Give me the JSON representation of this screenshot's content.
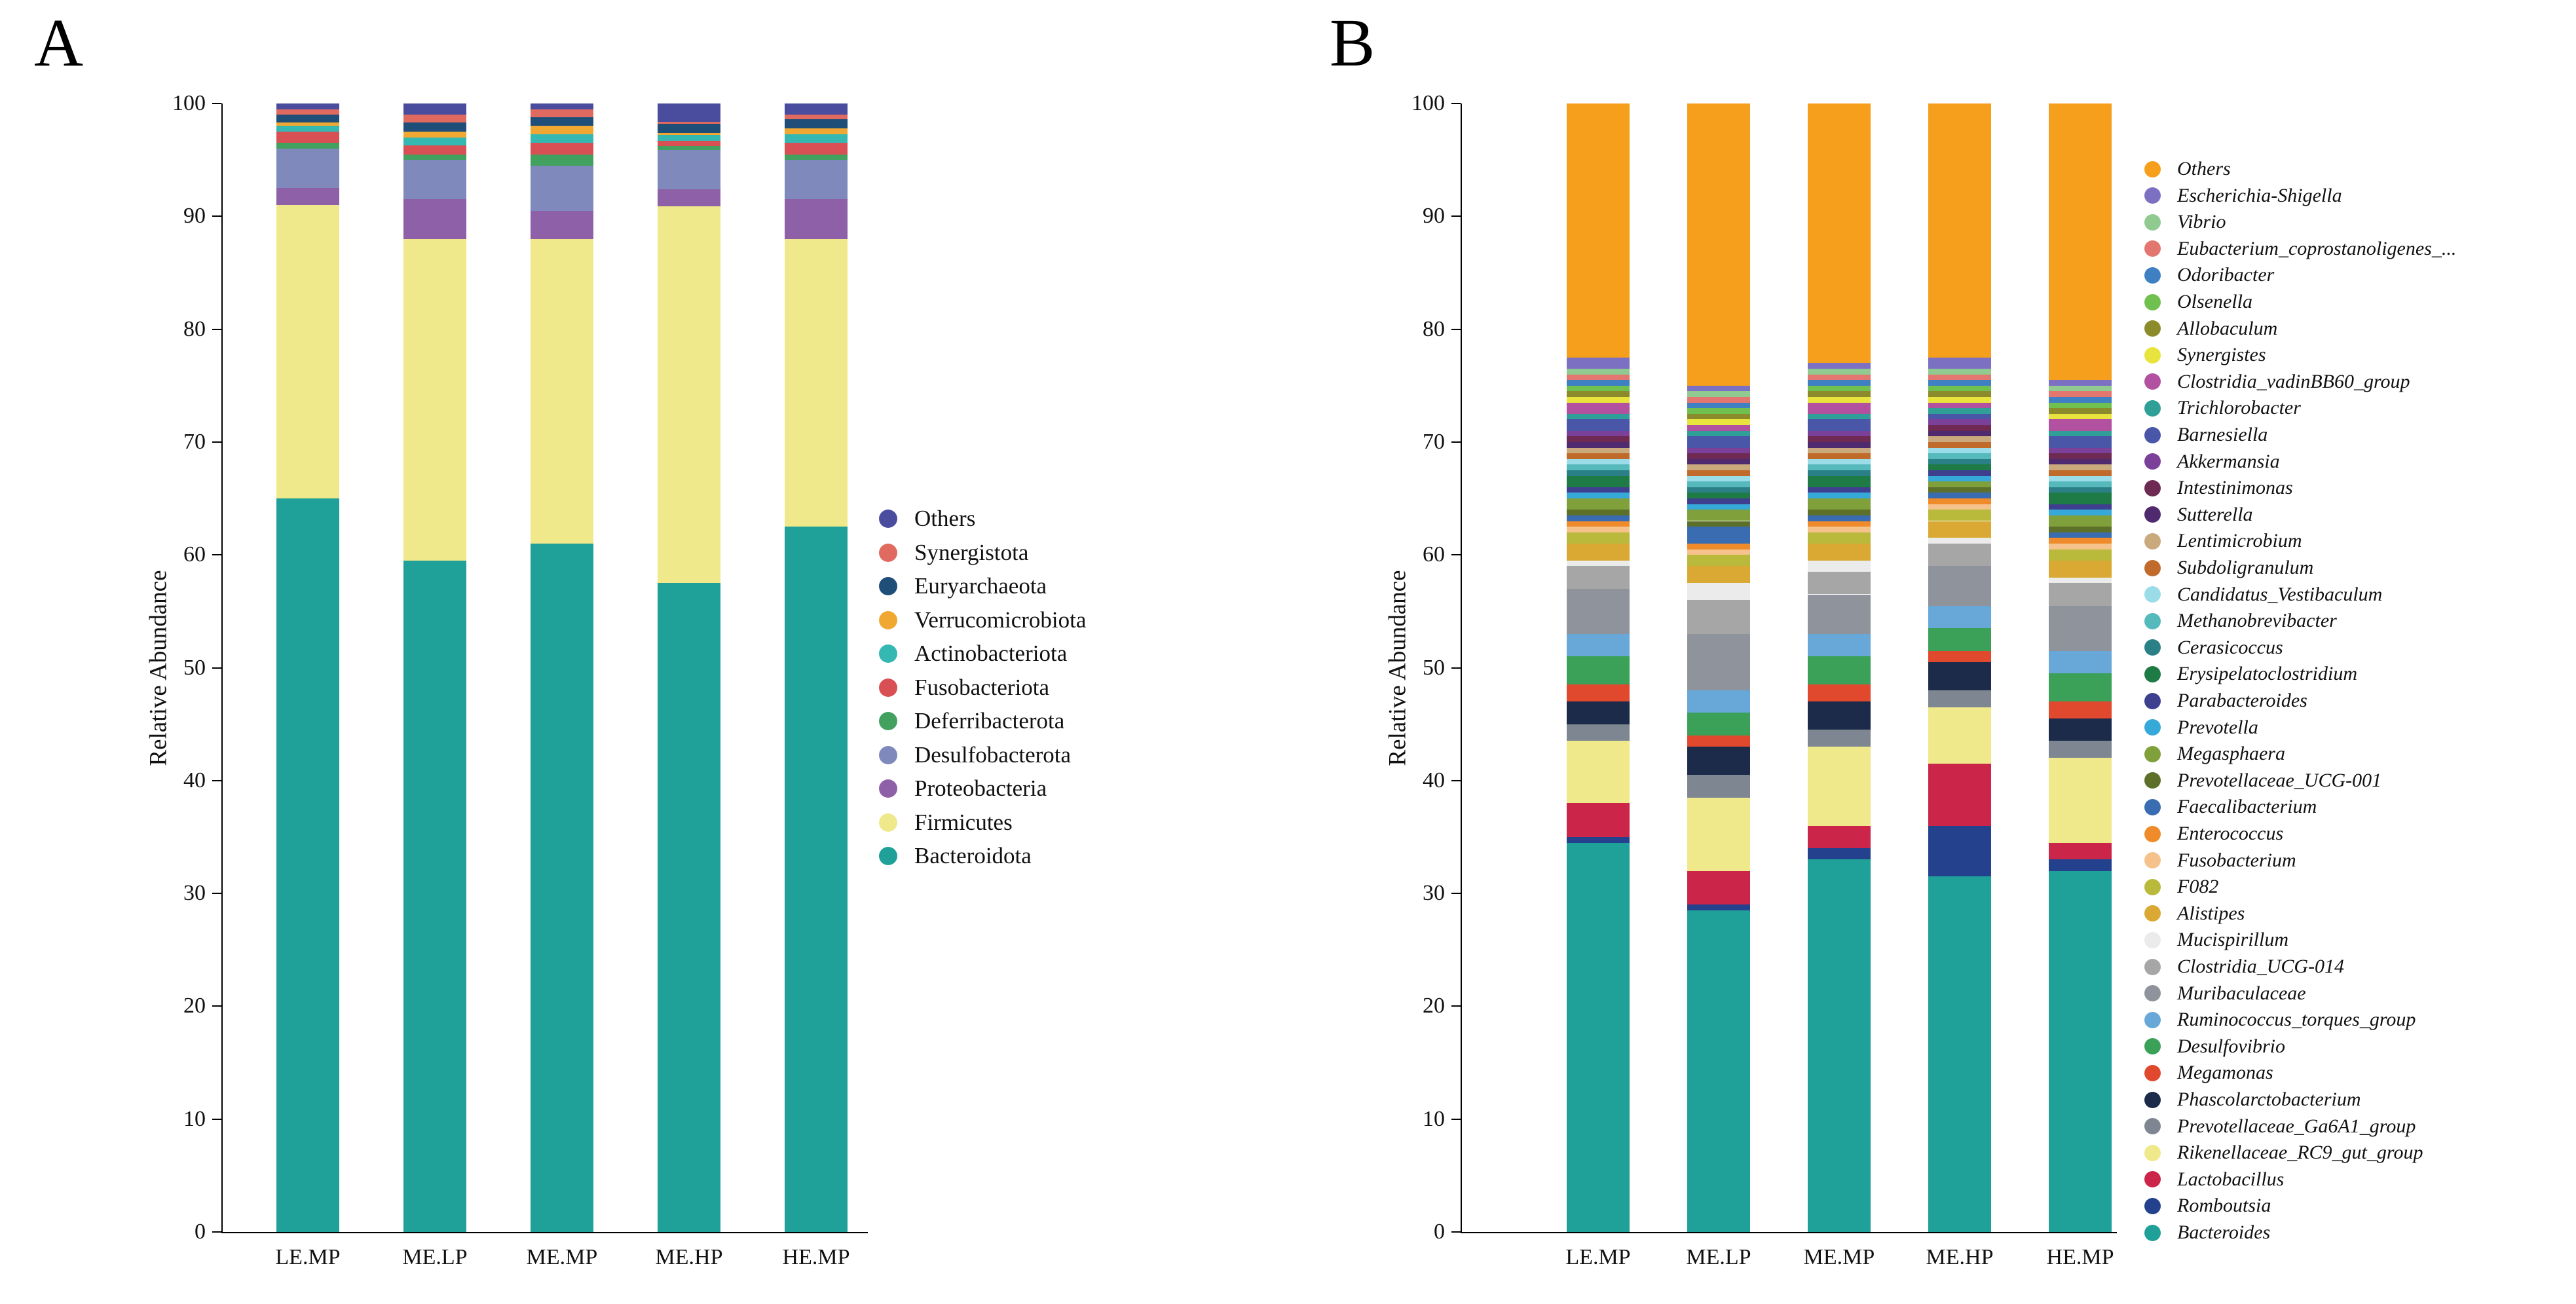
{
  "panel_a": {
    "label": "A"
  },
  "panel_b": {
    "label": "B"
  },
  "chart_data": [
    {
      "id": "A",
      "type": "bar",
      "stacked": true,
      "title": "",
      "xlabel": "",
      "ylabel": "Relative Abundance",
      "ylim": [
        0,
        100
      ],
      "ytick_step": 10,
      "grid": false,
      "legend_position": "right",
      "legend_italic": false,
      "categories": [
        "LE.MP",
        "ME.LP",
        "ME.MP",
        "ME.HP",
        "HE.MP"
      ],
      "series": [
        {
          "name": "Bacteroidota",
          "color": "#1fa098",
          "values": [
            65,
            59.5,
            61,
            57.5,
            62.5
          ]
        },
        {
          "name": "Firmicutes",
          "color": "#efe98c",
          "values": [
            26,
            28.5,
            27,
            33.4,
            25.5
          ]
        },
        {
          "name": "Proteobacteria",
          "color": "#8e60a8",
          "values": [
            1.5,
            3.5,
            2.5,
            1.5,
            3.5
          ]
        },
        {
          "name": "Desulfobacterota",
          "color": "#8089bb",
          "values": [
            3.5,
            3.5,
            4,
            3.5,
            3.5
          ]
        },
        {
          "name": "Deferribacterota",
          "color": "#43a160",
          "values": [
            0.5,
            0.5,
            1,
            0.3,
            0.5
          ]
        },
        {
          "name": "Fusobacteriota",
          "color": "#d84f54",
          "values": [
            1,
            0.8,
            1,
            0.5,
            1
          ]
        },
        {
          "name": "Actinobacteriota",
          "color": "#35b8b2",
          "values": [
            0.5,
            0.7,
            0.8,
            0.5,
            0.8
          ]
        },
        {
          "name": "Verrucomicrobiota",
          "color": "#f0a833",
          "values": [
            0.3,
            0.5,
            0.7,
            0.2,
            0.5
          ]
        },
        {
          "name": "Euryarchaeota",
          "color": "#1f4e79",
          "values": [
            0.7,
            0.8,
            0.8,
            0.8,
            0.8
          ]
        },
        {
          "name": "Synergistota",
          "color": "#e06a5f",
          "values": [
            0.5,
            0.7,
            0.7,
            0.2,
            0.4
          ]
        },
        {
          "name": "Others",
          "color": "#4a4d9e",
          "values": [
            0.5,
            1,
            0.5,
            1.6,
            1
          ]
        }
      ]
    },
    {
      "id": "B",
      "type": "bar",
      "stacked": true,
      "title": "",
      "xlabel": "",
      "ylabel": "Relative Abundance",
      "ylim": [
        0,
        100
      ],
      "ytick_step": 10,
      "grid": false,
      "legend_position": "right",
      "legend_italic": true,
      "categories": [
        "LE.MP",
        "ME.LP",
        "ME.MP",
        "ME.HP",
        "HE.MP"
      ],
      "series": [
        {
          "name": "Bacteroides",
          "color": "#1fa098",
          "values": [
            34.5,
            28.5,
            33,
            31.5,
            32
          ]
        },
        {
          "name": "Romboutsia",
          "color": "#24418e",
          "values": [
            0.5,
            0.5,
            1,
            4.5,
            1
          ]
        },
        {
          "name": "Lactobacillus",
          "color": "#cb2649",
          "values": [
            3,
            3,
            2,
            5.5,
            1.5
          ]
        },
        {
          "name": "Rikenellaceae_RC9_gut_group",
          "color": "#efe98c",
          "values": [
            5.5,
            6.5,
            7,
            5,
            7.5
          ]
        },
        {
          "name": "Prevotellaceae_Ga6A1_group",
          "color": "#7e8791",
          "values": [
            1.5,
            2,
            1.5,
            1.5,
            1.5
          ]
        },
        {
          "name": "Phascolarctobacterium",
          "color": "#1c2b4a",
          "values": [
            2,
            2.5,
            2.5,
            2.5,
            2
          ]
        },
        {
          "name": "Megamonas",
          "color": "#e0492e",
          "values": [
            1.5,
            1,
            1.5,
            1,
            1.5
          ]
        },
        {
          "name": "Desulfovibrio",
          "color": "#3ba158",
          "values": [
            2.5,
            2,
            2.5,
            2,
            2.5
          ]
        },
        {
          "name": "Ruminococcus_torques_group",
          "color": "#68a8d8",
          "values": [
            2,
            2,
            2,
            2,
            2
          ]
        },
        {
          "name": "Muribaculaceae",
          "color": "#8e939c",
          "values": [
            4,
            5,
            3.5,
            3.5,
            4
          ]
        },
        {
          "name": "Clostridia_UCG-014",
          "color": "#a6a6a6",
          "values": [
            2,
            3,
            2,
            2,
            2
          ]
        },
        {
          "name": "Mucispirillum",
          "color": "#ebebeb",
          "values": [
            0.5,
            1.5,
            1,
            0.5,
            0.5
          ]
        },
        {
          "name": "Alistipes",
          "color": "#d9a933",
          "values": [
            1.5,
            1.5,
            1.5,
            1.5,
            1.5
          ]
        },
        {
          "name": "F082",
          "color": "#b9b93c",
          "values": [
            1,
            1,
            1,
            1,
            1
          ]
        },
        {
          "name": "Fusobacterium",
          "color": "#f5c28c",
          "values": [
            0.5,
            0.5,
            0.5,
            0.5,
            0.5
          ]
        },
        {
          "name": "Enterococcus",
          "color": "#ef8b2b",
          "values": [
            0.5,
            0.5,
            0.5,
            0.5,
            0.5
          ]
        },
        {
          "name": "Faecalibacterium",
          "color": "#3a6cb2",
          "values": [
            0.5,
            1.5,
            0.5,
            0.5,
            0.5
          ]
        },
        {
          "name": "Prevotellaceae_UCG-001",
          "color": "#5d7029",
          "values": [
            0.5,
            0.5,
            0.5,
            0.5,
            0.5
          ]
        },
        {
          "name": "Megasphaera",
          "color": "#7fa03b",
          "values": [
            1,
            1,
            1,
            0.5,
            1
          ]
        },
        {
          "name": "Prevotella",
          "color": "#36a9d9",
          "values": [
            0.5,
            0.5,
            0.5,
            0.5,
            0.5
          ]
        },
        {
          "name": "Parabacteroides",
          "color": "#3f3f90",
          "values": [
            0.5,
            0.5,
            0.5,
            0.5,
            0.5
          ]
        },
        {
          "name": "Erysipelatoclostridium",
          "color": "#1e7b45",
          "values": [
            1,
            0.5,
            1,
            0.5,
            1
          ]
        },
        {
          "name": "Cerasicoccus",
          "color": "#2b8087",
          "values": [
            0.5,
            0.5,
            0.5,
            0.5,
            0.5
          ]
        },
        {
          "name": "Methanobrevibacter",
          "color": "#56b9bb",
          "values": [
            0.5,
            0.5,
            0.5,
            0.5,
            0.5
          ]
        },
        {
          "name": "Candidatus_Vestibaculum",
          "color": "#9bdce9",
          "values": [
            0.5,
            0.5,
            0.5,
            0.5,
            0.5
          ]
        },
        {
          "name": "Subdoligranulum",
          "color": "#c06b2b",
          "values": [
            0.5,
            0.5,
            0.5,
            0.5,
            0.5
          ]
        },
        {
          "name": "Lentimicrobium",
          "color": "#caa97d",
          "values": [
            0.5,
            0.5,
            0.5,
            0.5,
            0.5
          ]
        },
        {
          "name": "Sutterella",
          "color": "#502a6e",
          "values": [
            0.5,
            0.5,
            0.5,
            0.5,
            0.5
          ]
        },
        {
          "name": "Intestinimonas",
          "color": "#6e2a52",
          "values": [
            0.5,
            0.5,
            0.5,
            0.5,
            0.5
          ]
        },
        {
          "name": "Akkermansia",
          "color": "#7b4099",
          "values": [
            0.5,
            0.5,
            0.5,
            0.5,
            0.5
          ]
        },
        {
          "name": "Barnesiella",
          "color": "#4a57a9",
          "values": [
            1,
            1,
            1,
            0.5,
            1
          ]
        },
        {
          "name": "Trichlorobacter",
          "color": "#2f9f98",
          "values": [
            0.5,
            0.5,
            0.5,
            0.5,
            0.5
          ]
        },
        {
          "name": "Clostridia_vadinBB60_group",
          "color": "#b151a0",
          "values": [
            1,
            0.5,
            1,
            0.5,
            1
          ]
        },
        {
          "name": "Synergistes",
          "color": "#e9e43d",
          "values": [
            0.5,
            0.5,
            0.5,
            0.5,
            0.5
          ]
        },
        {
          "name": "Allobaculum",
          "color": "#8b8b2b",
          "values": [
            0.5,
            0.5,
            0.5,
            0.5,
            0.5
          ]
        },
        {
          "name": "Olsenella",
          "color": "#70c04f",
          "values": [
            0.5,
            0.5,
            0.5,
            0.5,
            0.5
          ]
        },
        {
          "name": "Odoribacter",
          "color": "#3e80c2",
          "values": [
            0.5,
            0.5,
            0.5,
            0.5,
            0.5
          ]
        },
        {
          "name": "Eubacterium_coprostanoligenes_...",
          "color": "#e37770",
          "values": [
            0.5,
            0.5,
            0.5,
            0.5,
            0.5
          ]
        },
        {
          "name": "Vibrio",
          "color": "#90ca90",
          "values": [
            0.5,
            0.5,
            0.5,
            0.5,
            0.5
          ]
        },
        {
          "name": "Escherichia-Shigella",
          "color": "#7c70c3",
          "values": [
            1,
            0.5,
            0.5,
            1,
            0.5
          ]
        },
        {
          "name": "Others",
          "color": "#f59f1c",
          "values": [
            22.5,
            25,
            23,
            22.5,
            24.5
          ]
        }
      ]
    }
  ]
}
